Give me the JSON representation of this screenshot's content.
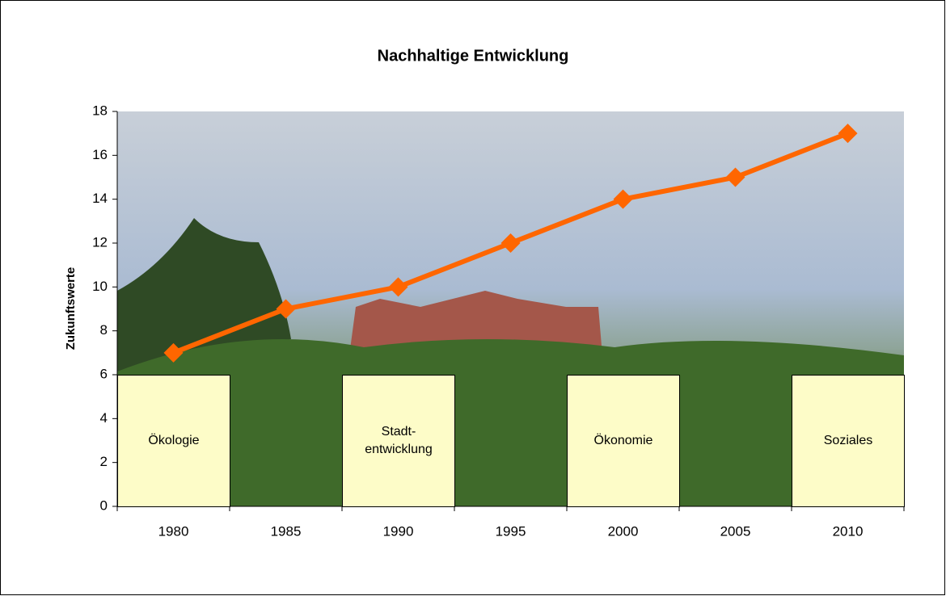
{
  "chart_data": {
    "type": "line",
    "title": "Nachhaltige Entwicklung",
    "ylabel": "Zukunftswerte",
    "categories": [
      "1980",
      "1985",
      "1990",
      "1995",
      "2000",
      "2005",
      "2010"
    ],
    "series": [
      {
        "color": "#ff6600",
        "values": [
          7,
          9,
          10,
          12,
          14,
          15,
          17
        ]
      }
    ],
    "ylim": [
      0,
      18
    ],
    "yticks": [
      0,
      2,
      4,
      6,
      8,
      10,
      12,
      14,
      16,
      18
    ],
    "annotations": [
      "Ökologie",
      "Stadt-\nentwicklung",
      "Ökonomie",
      "Soziales"
    ]
  }
}
